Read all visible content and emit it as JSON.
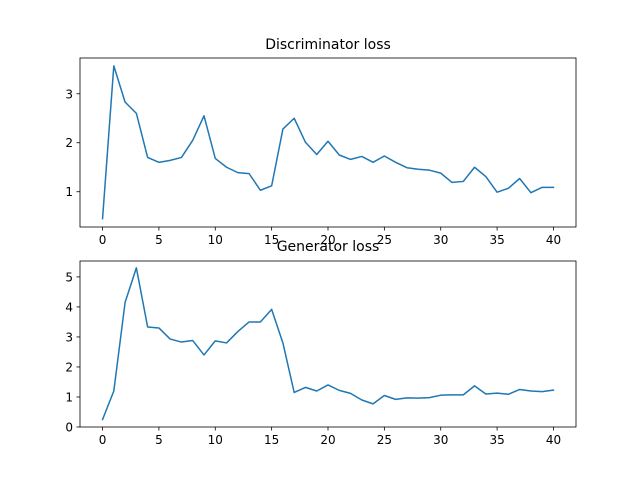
{
  "chart_data": [
    {
      "type": "line",
      "title": "Discriminator loss",
      "xlabel": "",
      "ylabel": "",
      "xlim": [
        -2,
        42
      ],
      "ylim": [
        0.28,
        3.73
      ],
      "xticks": [
        0,
        5,
        10,
        15,
        20,
        25,
        30,
        35,
        40
      ],
      "yticks": [
        1,
        2,
        3
      ],
      "grid": false,
      "color": "#1f77b4",
      "x": [
        0,
        1,
        2,
        3,
        4,
        5,
        6,
        7,
        8,
        9,
        10,
        11,
        12,
        13,
        14,
        15,
        16,
        17,
        18,
        19,
        20,
        21,
        22,
        23,
        24,
        25,
        26,
        27,
        28,
        29,
        30,
        31,
        32,
        33,
        34,
        35,
        36,
        37,
        38,
        39,
        40
      ],
      "values": [
        0.45,
        3.57,
        2.83,
        2.6,
        1.7,
        1.6,
        1.64,
        1.7,
        2.05,
        2.55,
        1.68,
        1.5,
        1.39,
        1.37,
        1.03,
        1.12,
        2.28,
        2.5,
        2.01,
        1.76,
        2.03,
        1.75,
        1.66,
        1.72,
        1.6,
        1.73,
        1.6,
        1.49,
        1.46,
        1.44,
        1.38,
        1.19,
        1.21,
        1.5,
        1.31,
        0.99,
        1.07,
        1.27,
        0.98,
        1.09,
        1.09
      ]
    },
    {
      "type": "line",
      "title": "Generator loss",
      "xlabel": "",
      "ylabel": "",
      "xlim": [
        -2,
        42
      ],
      "ylim": [
        0,
        5.53
      ],
      "xticks": [
        0,
        5,
        10,
        15,
        20,
        25,
        30,
        35,
        40
      ],
      "yticks": [
        0,
        1,
        2,
        3,
        4,
        5
      ],
      "grid": false,
      "color": "#1f77b4",
      "x": [
        0,
        1,
        2,
        3,
        4,
        5,
        6,
        7,
        8,
        9,
        10,
        11,
        12,
        13,
        14,
        15,
        16,
        17,
        18,
        19,
        20,
        21,
        22,
        23,
        24,
        25,
        26,
        27,
        28,
        29,
        30,
        31,
        32,
        33,
        34,
        35,
        36,
        37,
        38,
        39,
        40
      ],
      "values": [
        0.25,
        1.2,
        4.15,
        5.3,
        3.33,
        3.3,
        2.93,
        2.83,
        2.88,
        2.4,
        2.87,
        2.8,
        3.18,
        3.5,
        3.5,
        3.92,
        2.8,
        1.15,
        1.32,
        1.2,
        1.4,
        1.22,
        1.12,
        0.9,
        0.77,
        1.05,
        0.92,
        0.97,
        0.96,
        0.98,
        1.06,
        1.07,
        1.07,
        1.37,
        1.1,
        1.13,
        1.09,
        1.25,
        1.2,
        1.18,
        1.23
      ]
    }
  ]
}
